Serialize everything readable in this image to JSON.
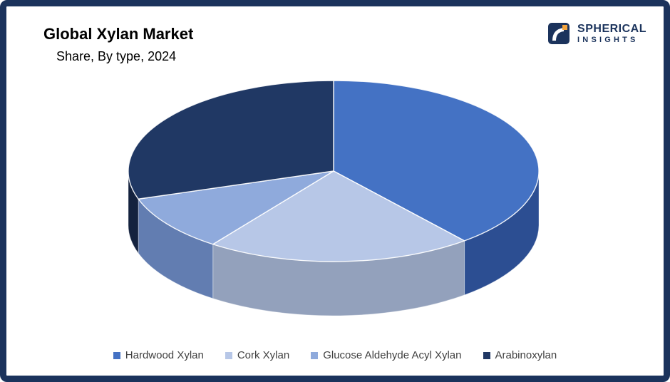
{
  "frame": {
    "border_color": "#1B335C",
    "background_color": "#FFFFFF"
  },
  "header": {
    "title": "Global Xylan Market",
    "subtitle": "Share, By type, 2024"
  },
  "logo": {
    "line1": "SPHERICAL",
    "line2": "INSIGHTS",
    "navy": "#1B335C",
    "orange": "#F2A33C"
  },
  "chart_data": {
    "type": "pie",
    "title": "Global Xylan Market Share, By type, 2024",
    "unit": "% share (estimated from slice angles)",
    "is_3d": true,
    "start_angle_deg": 0,
    "direction": "clockwise",
    "legend_position": "bottom",
    "slices": [
      {
        "label": "Hardwood Xylan",
        "value": 39,
        "color": "#4472C4",
        "side_color": "#2C4E92"
      },
      {
        "label": "Cork Xylan",
        "value": 21,
        "color": "#B7C7E7",
        "side_color": "#93A1BC"
      },
      {
        "label": "Glucose Aldehyde Acyl Xylan",
        "value": 10,
        "color": "#8FAADC",
        "side_color": "#627DB1"
      },
      {
        "label": "Arabinoxylan",
        "value": 30,
        "color": "#203864",
        "side_color": "#14223E"
      }
    ]
  },
  "legend": {
    "text_color": "#404040"
  }
}
